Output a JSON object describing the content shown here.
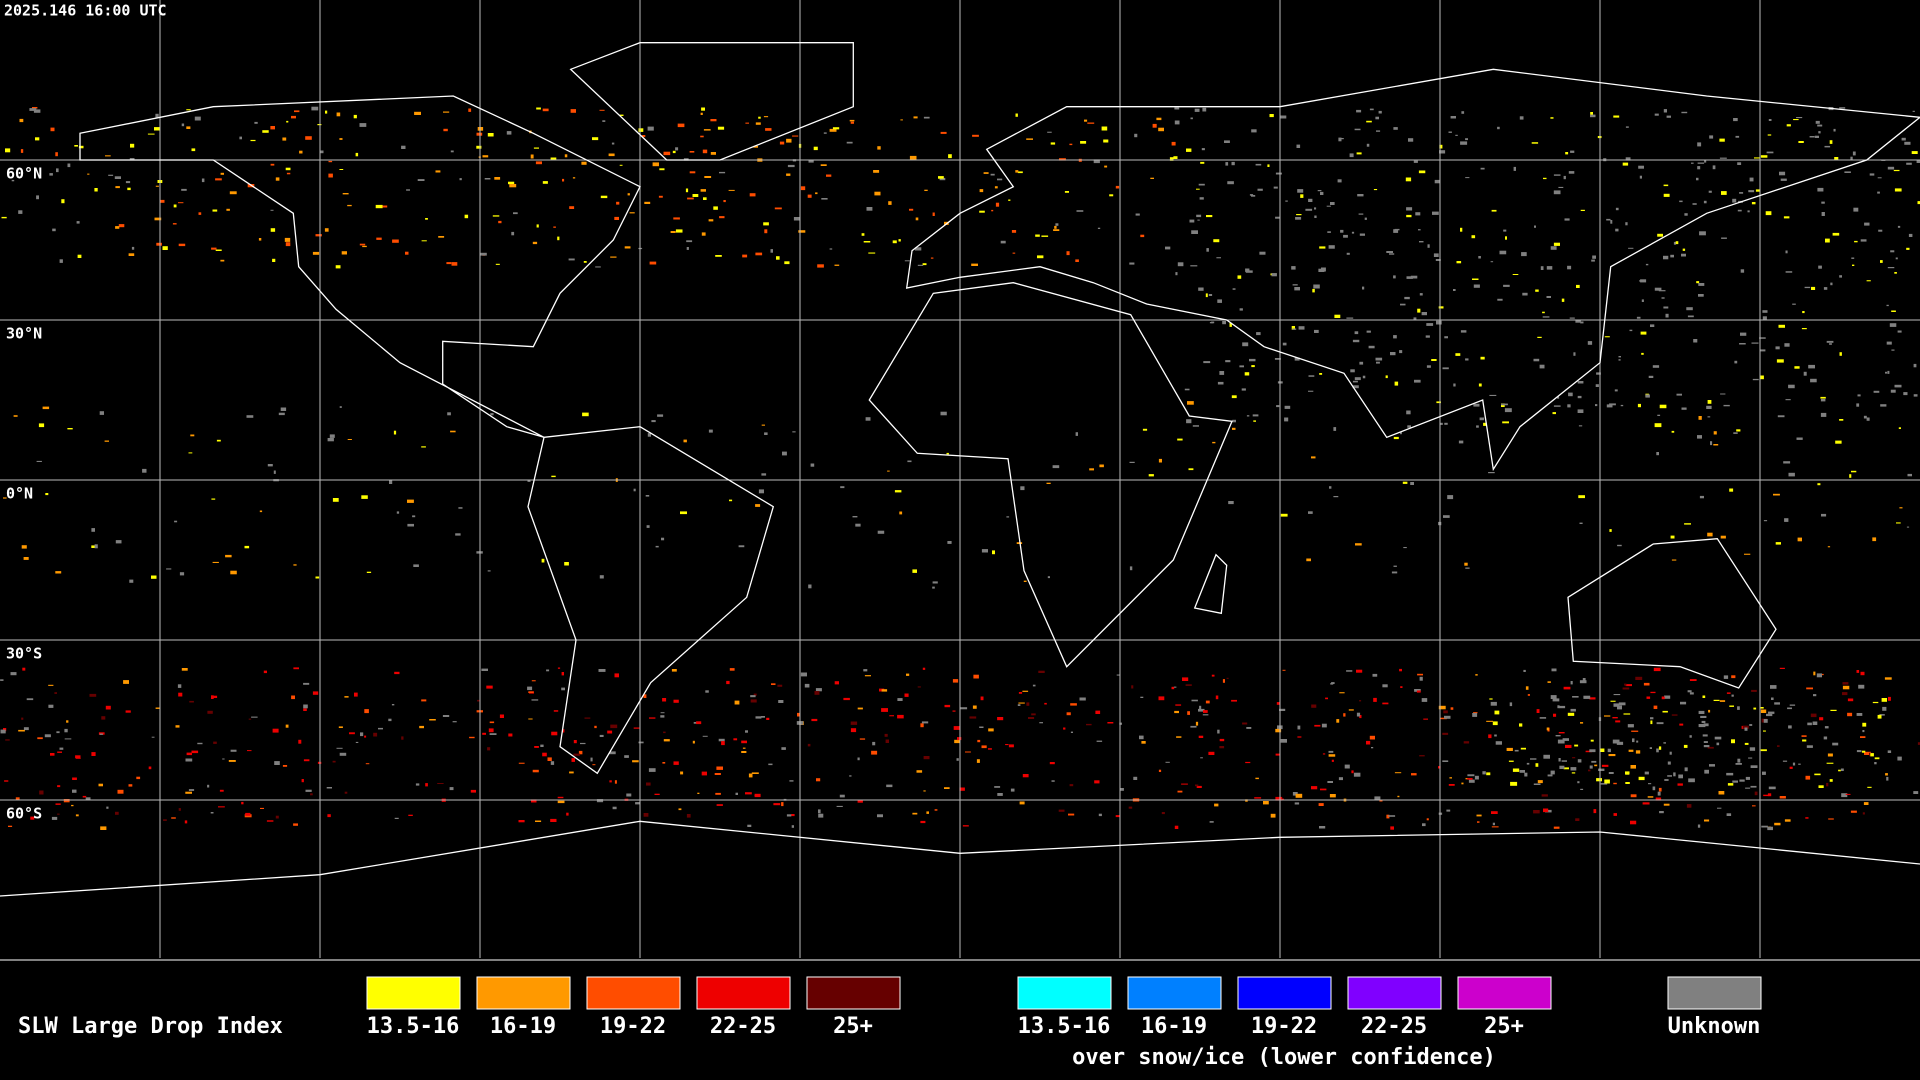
{
  "timestamp": "2025.146 16:00 UTC",
  "lat_labels": [
    "60°N",
    "30°N",
    "0°N",
    "30°S",
    "60°S"
  ],
  "legend": {
    "title": "SLW Large Drop Index",
    "groups": [
      {
        "items": [
          {
            "label": "13.5-16",
            "color": "#ffff00"
          },
          {
            "label": "16-19",
            "color": "#ff9900"
          },
          {
            "label": "19-22",
            "color": "#ff4d00"
          },
          {
            "label": "22-25",
            "color": "#ee0000"
          },
          {
            "label": "25+",
            "color": "#660000"
          }
        ]
      },
      {
        "items": [
          {
            "label": "13.5-16",
            "color": "#00ffff"
          },
          {
            "label": "16-19",
            "color": "#0080ff"
          },
          {
            "label": "19-22",
            "color": "#0000ff"
          },
          {
            "label": "22-25",
            "color": "#8000ff"
          },
          {
            "label": "25+",
            "color": "#cc00cc"
          }
        ],
        "note": "over snow/ice (lower confidence)"
      }
    ],
    "unknown": {
      "label": "Unknown",
      "color": "#808080"
    }
  }
}
